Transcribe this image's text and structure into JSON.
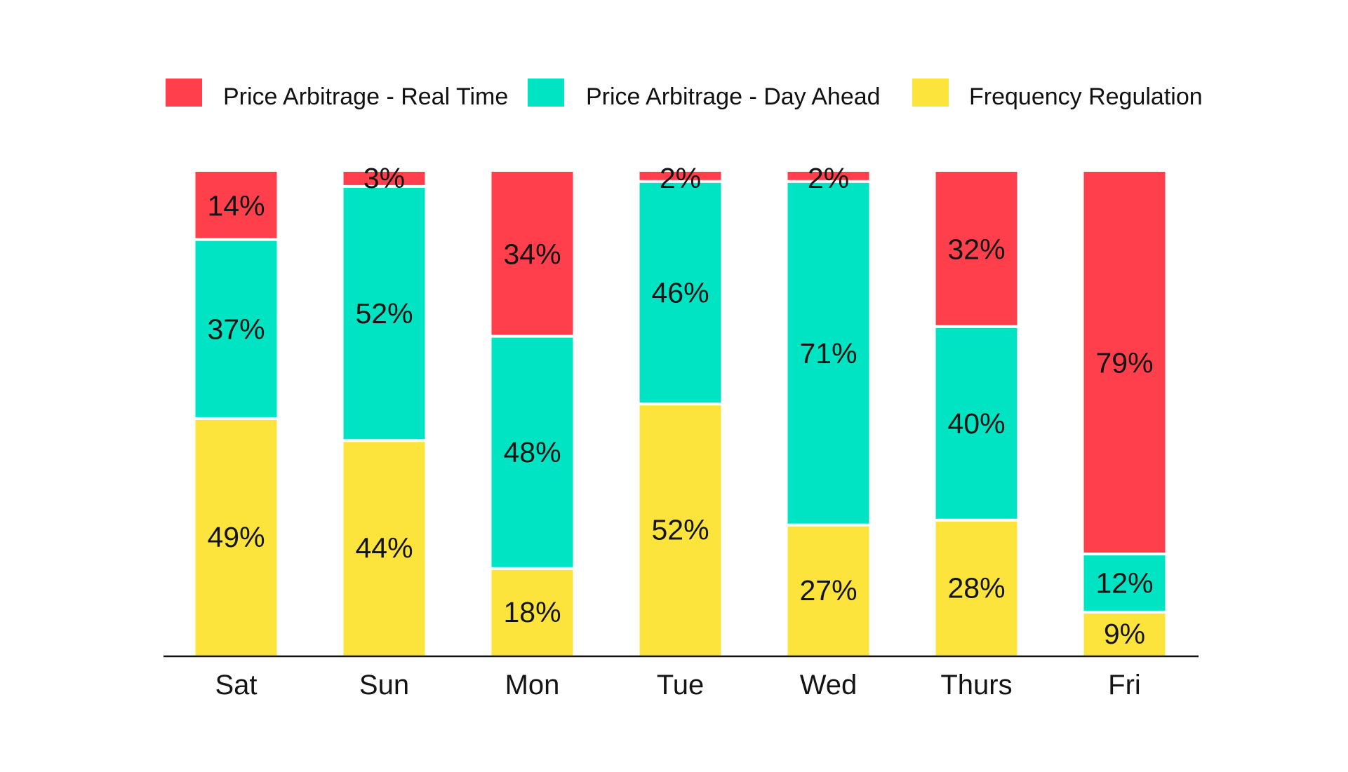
{
  "chart_data": {
    "type": "bar",
    "stacked": true,
    "normalized": true,
    "categories": [
      "Sat",
      "Sun",
      "Mon",
      "Tue",
      "Wed",
      "Thurs",
      "Fri"
    ],
    "series": [
      {
        "name": "Frequency Regulation",
        "color": "#FDE43C",
        "values": [
          49,
          44,
          18,
          52,
          27,
          28,
          9
        ],
        "labels": [
          "49%",
          "44%",
          "18%",
          "52%",
          "27%",
          "28%",
          "9%"
        ]
      },
      {
        "name": "Price Arbitrage - Day Ahead",
        "color": "#00E4C4",
        "values": [
          37,
          52,
          48,
          46,
          71,
          40,
          12
        ],
        "labels": [
          "37%",
          "52%",
          "48%",
          "46%",
          "71%",
          "40%",
          "12%"
        ]
      },
      {
        "name": "Price Arbitrage - Real Time",
        "color": "#FF404C",
        "values": [
          14,
          3,
          34,
          2,
          2,
          32,
          79
        ],
        "labels": [
          "14%",
          "3%",
          "34%",
          "2%",
          "2%",
          "32%",
          "79%"
        ]
      }
    ],
    "legend_order": [
      "Price Arbitrage - Real Time",
      "Price Arbitrage - Day Ahead",
      "Frequency Regulation"
    ],
    "legend_position": "top",
    "grid": false,
    "title": "",
    "xlabel": "",
    "ylabel": ""
  }
}
